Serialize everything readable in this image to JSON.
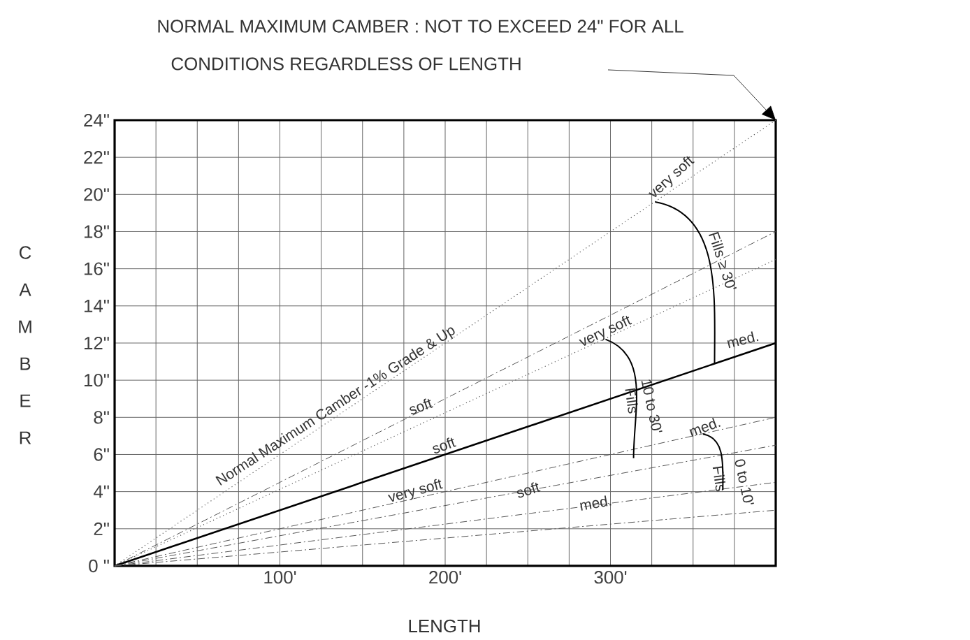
{
  "chart_data": {
    "type": "line",
    "title": "NORMAL MAXIMUM CAMBER : NOT TO EXCEED 24\" FOR ALL CONDITIONS REGARDLESS OF LENGTH",
    "xlabel": "LENGTH",
    "ylabel": "CAMBER",
    "x": [
      0,
      400
    ],
    "series": [
      {
        "color": "#555555",
        "line_style": "dotted",
        "values": [
          0,
          24
        ]
      },
      {
        "color": "#555555",
        "line_style": "dashed",
        "values": [
          0,
          18
        ]
      },
      {
        "color": "#555555",
        "line_style": "dotted",
        "values": [
          0,
          16.5
        ]
      },
      {
        "color": "#000000",
        "line_style": "solid",
        "values": [
          0,
          12
        ]
      },
      {
        "color": "#555555",
        "line_style": "dashed",
        "values": [
          0,
          8
        ]
      },
      {
        "color": "#555555",
        "line_style": "dashed",
        "values": [
          0,
          6.5
        ]
      },
      {
        "color": "#555555",
        "line_style": "dashed",
        "values": [
          0,
          4.5
        ]
      },
      {
        "color": "#555555",
        "line_style": "dashed",
        "values": [
          0,
          3
        ]
      }
    ],
    "xlim": [
      0,
      400
    ],
    "ylim": [
      0,
      24
    ],
    "xticks": [
      {
        "value": 0,
        "label": null
      },
      {
        "value": 25,
        "label": null
      },
      {
        "value": 50,
        "label": null
      },
      {
        "value": 75,
        "label": null
      },
      {
        "value": 100,
        "label": "100'"
      },
      {
        "value": 125,
        "label": null
      },
      {
        "value": 150,
        "label": null
      },
      {
        "value": 175,
        "label": null
      },
      {
        "value": 200,
        "label": "200'"
      },
      {
        "value": 225,
        "label": null
      },
      {
        "value": 250,
        "label": null
      },
      {
        "value": 275,
        "label": null
      },
      {
        "value": 300,
        "label": "300'"
      },
      {
        "value": 325,
        "label": null
      },
      {
        "value": 350,
        "label": null
      },
      {
        "value": 375,
        "label": null
      },
      {
        "value": 400,
        "label": null
      }
    ],
    "yticks": [
      {
        "value": 0,
        "label": "0 \""
      },
      {
        "value": 2,
        "label": "2\""
      },
      {
        "value": 4,
        "label": "4\""
      },
      {
        "value": 6,
        "label": "6\""
      },
      {
        "value": 8,
        "label": "8\""
      },
      {
        "value": 10,
        "label": "10\""
      },
      {
        "value": 12,
        "label": "12\""
      },
      {
        "value": 14,
        "label": "14\""
      },
      {
        "value": 16,
        "label": "16\""
      },
      {
        "value": 18,
        "label": "18\""
      },
      {
        "value": 20,
        "label": "20\""
      },
      {
        "value": 22,
        "label": "22\""
      },
      {
        "value": 24,
        "label": "24\""
      }
    ],
    "grid": true,
    "marker": "none",
    "annotations": [
      "Normal Maximum Camber -1% Grade & Up",
      {
        "text": "very soft",
        "x": 327,
        "y": 19.6
      },
      "Fills ≥ 30'",
      {
        "text": "med.",
        "x": 363,
        "y": 10.9
      },
      {
        "text": "very soft",
        "x": 297,
        "y": 12.2
      },
      "10 to 30'",
      "Fills",
      {
        "text": "med.",
        "x": 356,
        "y": 7.1
      },
      {
        "text": "0 to 10'",
        "x": 368,
        "y": 4.1
      },
      "Fills",
      "soft",
      "med.",
      "soft",
      "soft",
      "very soft"
    ]
  }
}
